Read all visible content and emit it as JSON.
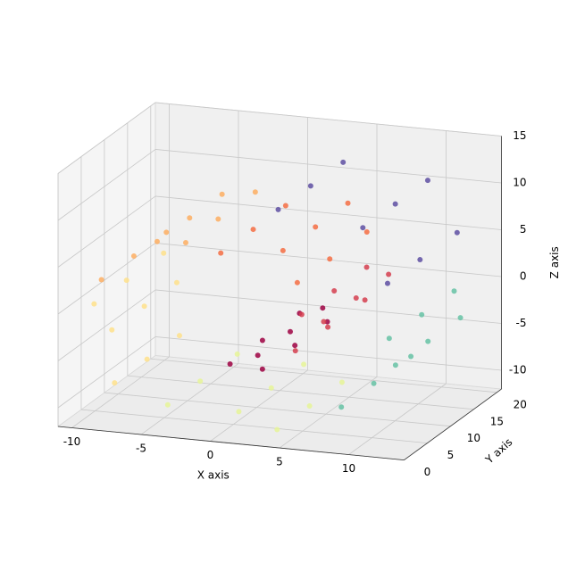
{
  "chart_data": {
    "type": "scatter3d",
    "xlabel": "X axis",
    "ylabel": "Y axis",
    "zlabel": "Z axis",
    "xlim": [
      -11,
      14
    ],
    "ylim": [
      0,
      21
    ],
    "zlim": [
      -12,
      15
    ],
    "xticks": [
      -10,
      -5,
      0,
      5,
      10
    ],
    "yticks": [
      0,
      5,
      10,
      15,
      20
    ],
    "zticks": [
      -10,
      -5,
      0,
      5,
      10,
      15
    ],
    "grid": true,
    "series": [
      {
        "color": "#9e0142",
        "x": [
          0.42,
          0.42,
          0.42,
          1.42,
          1.42,
          1.42,
          3.43,
          3.43,
          3.43
        ],
        "y": [
          3,
          10,
          18,
          6,
          13,
          20,
          1,
          8,
          15
        ],
        "z": [
          -4.78,
          -4.78,
          -4.78,
          -4.79,
          -4.79,
          -4.79,
          -4.17,
          -4.17,
          -4.17
        ]
      },
      {
        "color": "#d53e4f",
        "x": [
          5.14,
          5.14,
          5.14,
          6.18,
          6.18,
          6.18,
          6.27,
          6.27,
          6.27
        ],
        "y": [
          3,
          10,
          18,
          6,
          13,
          20,
          1,
          8,
          15
        ],
        "z": [
          -2.69,
          -2.69,
          -2.69,
          -0.52,
          -0.52,
          -0.52,
          2.06,
          2.06,
          2.06
        ]
      },
      {
        "color": "#f46d43",
        "x": [
          5.28,
          5.28,
          5.28,
          3.24,
          3.24,
          3.24,
          0.42,
          0.42,
          0.42
        ],
        "y": [
          3,
          10,
          18,
          6,
          13,
          20,
          1,
          8,
          15
        ],
        "z": [
          4.6,
          4.6,
          4.6,
          6.65,
          6.65,
          6.65,
          7.79,
          7.79,
          7.79
        ]
      },
      {
        "color": "#fdae61",
        "x": [
          -2.78,
          -2.78,
          -2.78,
          -5.85,
          -5.85,
          -5.85,
          -8.2,
          -8.2,
          -8.2
        ],
        "y": [
          3,
          10,
          18,
          6,
          13,
          20,
          1,
          8,
          15
        ],
        "z": [
          7.71,
          7.71,
          7.71,
          6.31,
          6.31,
          6.31,
          3.71,
          3.71,
          3.71
        ]
      },
      {
        "color": "#fee08b",
        "x": [
          -9.4,
          -9.4,
          -9.4,
          -9.12,
          -9.12,
          -9.12,
          -7.25,
          -7.25,
          -7.25
        ],
        "y": [
          3,
          10,
          18,
          6,
          13,
          20,
          1,
          8,
          15
        ],
        "z": [
          0.23,
          0.23,
          0.23,
          -3.59,
          -3.59,
          -3.59,
          -7.17,
          -7.17,
          -7.17
        ]
      },
      {
        "color": "#e6f598",
        "x": [
          -4.08,
          -4.08,
          -4.08,
          0.05,
          0.05,
          0.05,
          4.49,
          4.49,
          4.49
        ],
        "y": [
          3,
          10,
          18,
          6,
          13,
          20,
          1,
          8,
          15
        ],
        "z": [
          -9.78,
          -9.78,
          -9.78,
          -11.0,
          -11.0,
          -11.0,
          -10.48,
          -10.48,
          -10.48
        ]
      },
      {
        "color": "#66c2a5",
        "x": [
          8.46,
          8.46,
          8.46,
          11.37,
          11.37,
          11.37,
          12.59,
          12.59,
          12.59
        ],
        "y": [
          3,
          10,
          18,
          6,
          13,
          20,
          1,
          8,
          15
        ],
        "z": [
          -8.23,
          -8.23,
          -8.23,
          -4.41,
          -4.41,
          -4.41,
          0.42,
          0.42,
          0.42
        ]
      },
      {
        "color": "#5e4fa2",
        "x": [
          11.8,
          11.8,
          11.8,
          9.01,
          9.01,
          9.01,
          4.57,
          4.57,
          4.57
        ],
        "y": [
          3,
          10,
          18,
          6,
          13,
          20,
          1,
          8,
          15
        ],
        "z": [
          5.46,
          5.46,
          5.46,
          9.92,
          9.92,
          9.92,
          13.02,
          13.02,
          13.02
        ]
      }
    ]
  }
}
